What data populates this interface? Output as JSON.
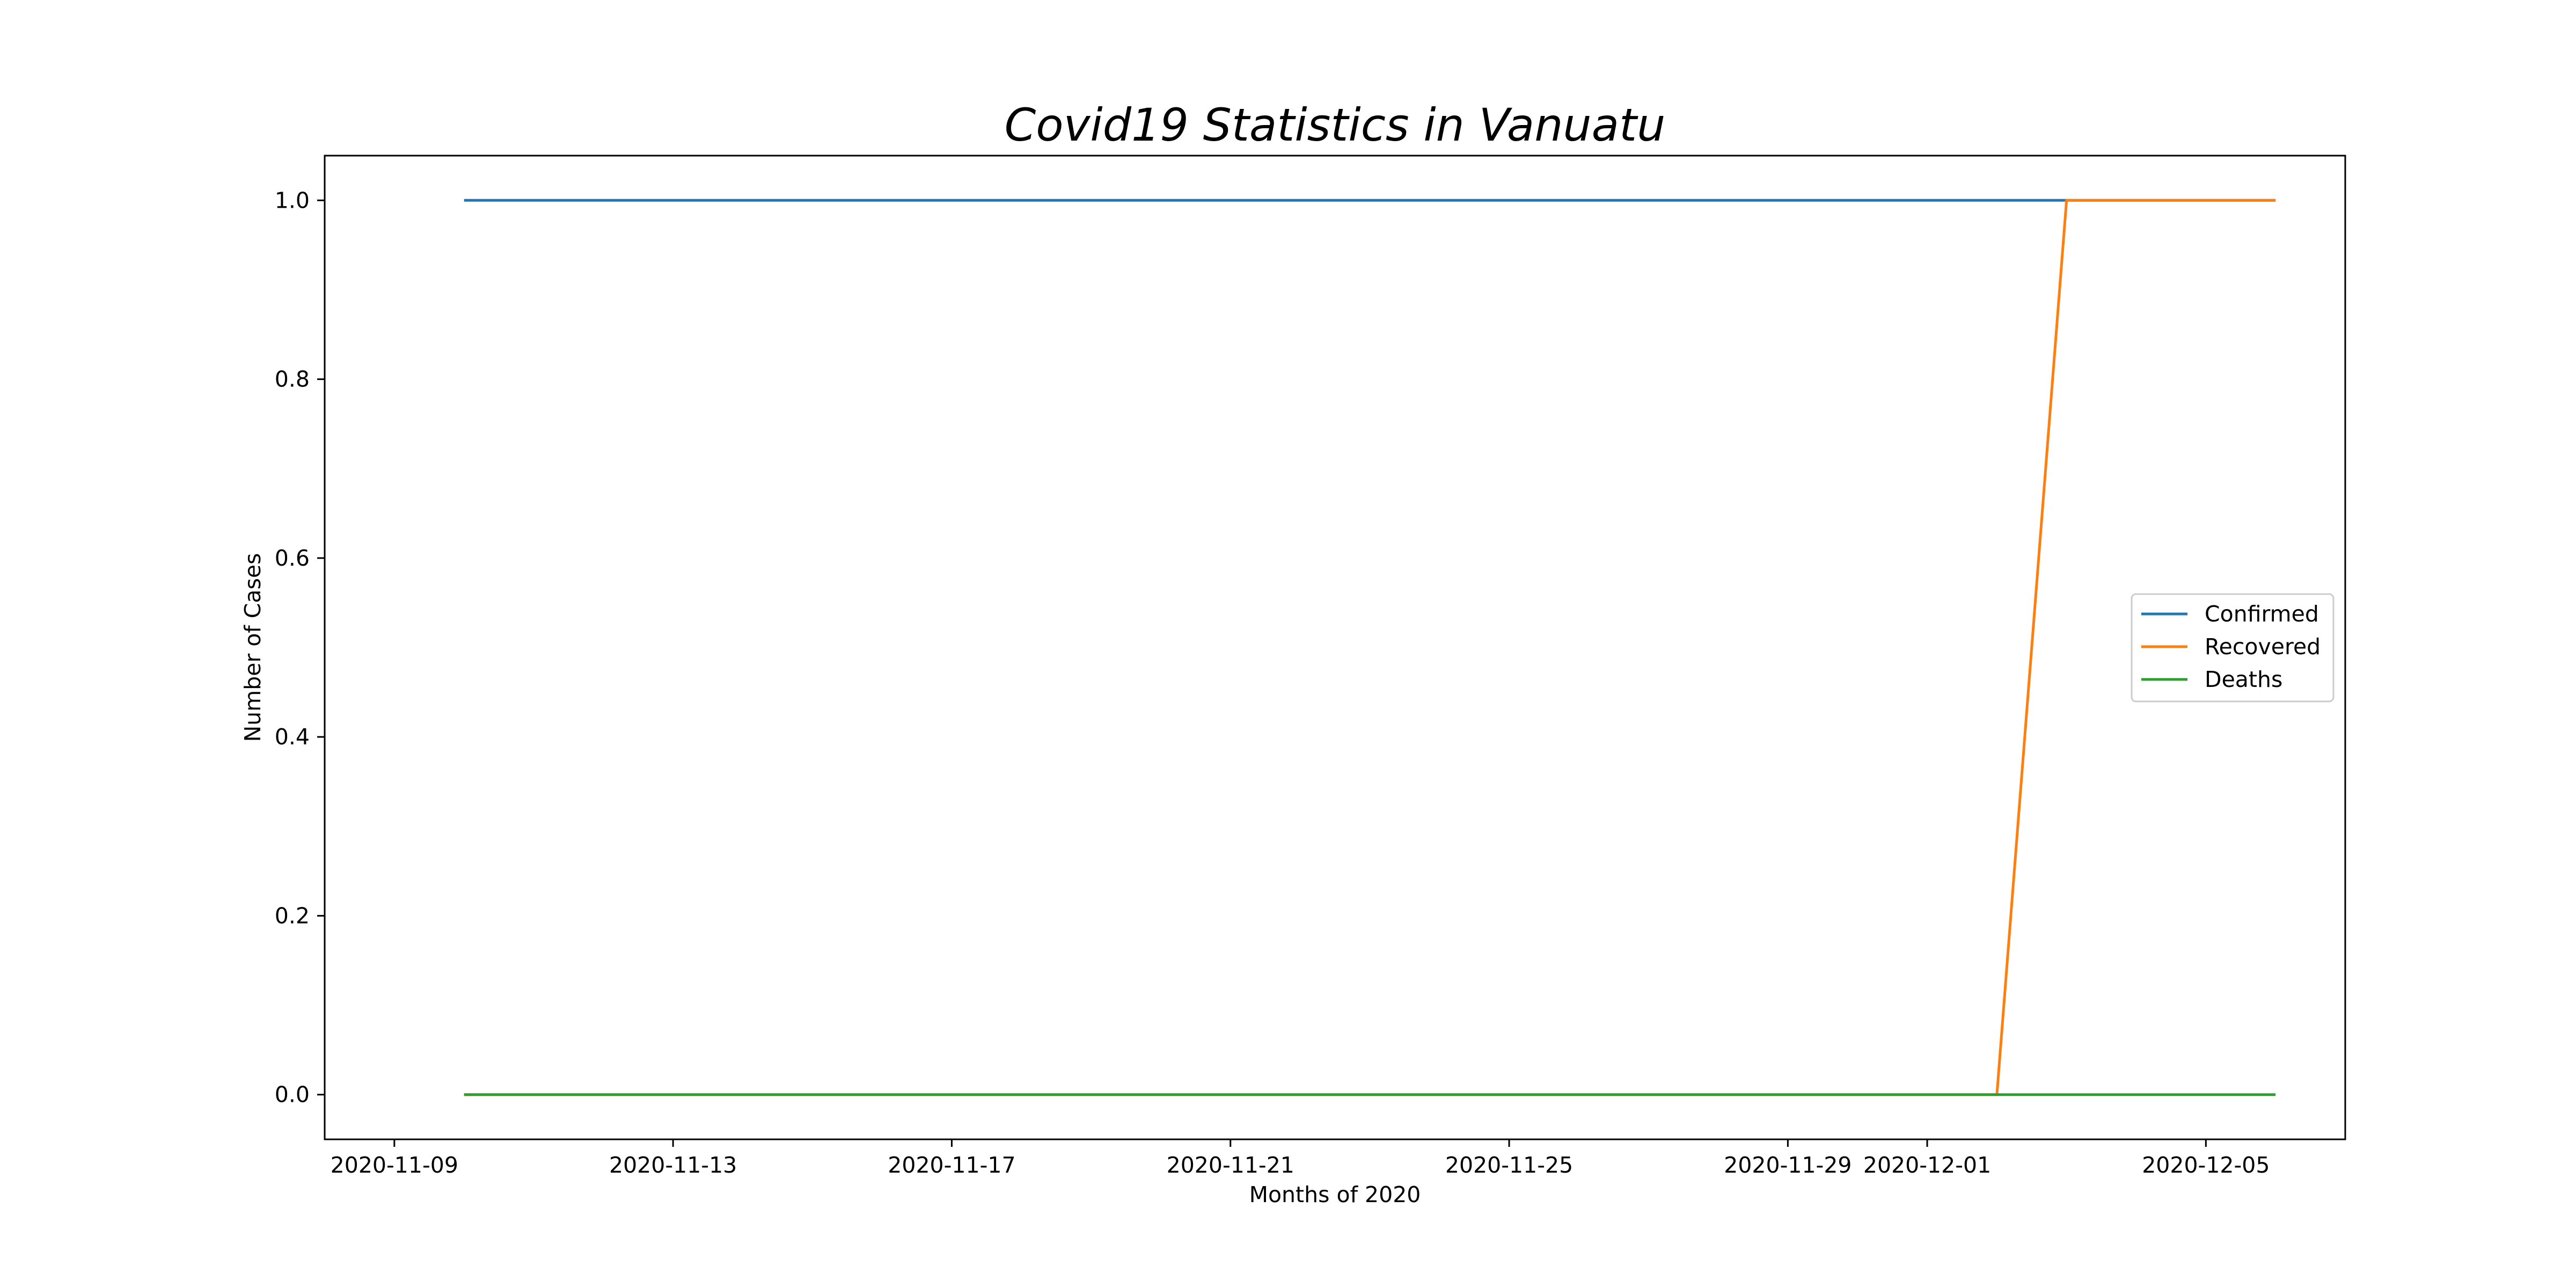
{
  "chart_data": {
    "type": "line",
    "title": "Covid19 Statistics in Vanuatu",
    "xlabel": "Months of 2020",
    "ylabel": "Number of Cases",
    "x_type": "date",
    "xlim": [
      "2020-11-08",
      "2020-12-07"
    ],
    "ylim": [
      -0.05,
      1.05
    ],
    "x_ticks": [
      "2020-11-09",
      "2020-11-13",
      "2020-11-17",
      "2020-11-21",
      "2020-11-25",
      "2020-11-29",
      "2020-12-01",
      "2020-12-05"
    ],
    "y_ticks": [
      0.0,
      0.2,
      0.4,
      0.6,
      0.8,
      1.0
    ],
    "y_tick_labels": [
      "0.0",
      "0.2",
      "0.4",
      "0.6",
      "0.8",
      "1.0"
    ],
    "legend_position": "center-right",
    "grid": false,
    "series": [
      {
        "name": "Confirmed",
        "color": "#1f77b4",
        "points": [
          [
            "2020-11-10",
            1
          ],
          [
            "2020-12-03",
            1
          ],
          [
            "2020-12-06",
            1
          ]
        ]
      },
      {
        "name": "Recovered",
        "color": "#ff7f0e",
        "points": [
          [
            "2020-11-10",
            0
          ],
          [
            "2020-12-02",
            0
          ],
          [
            "2020-12-03",
            1
          ],
          [
            "2020-12-06",
            1
          ]
        ]
      },
      {
        "name": "Deaths",
        "color": "#2ca02c",
        "points": [
          [
            "2020-11-10",
            0
          ],
          [
            "2020-12-03",
            0
          ],
          [
            "2020-12-06",
            0
          ]
        ]
      }
    ]
  }
}
